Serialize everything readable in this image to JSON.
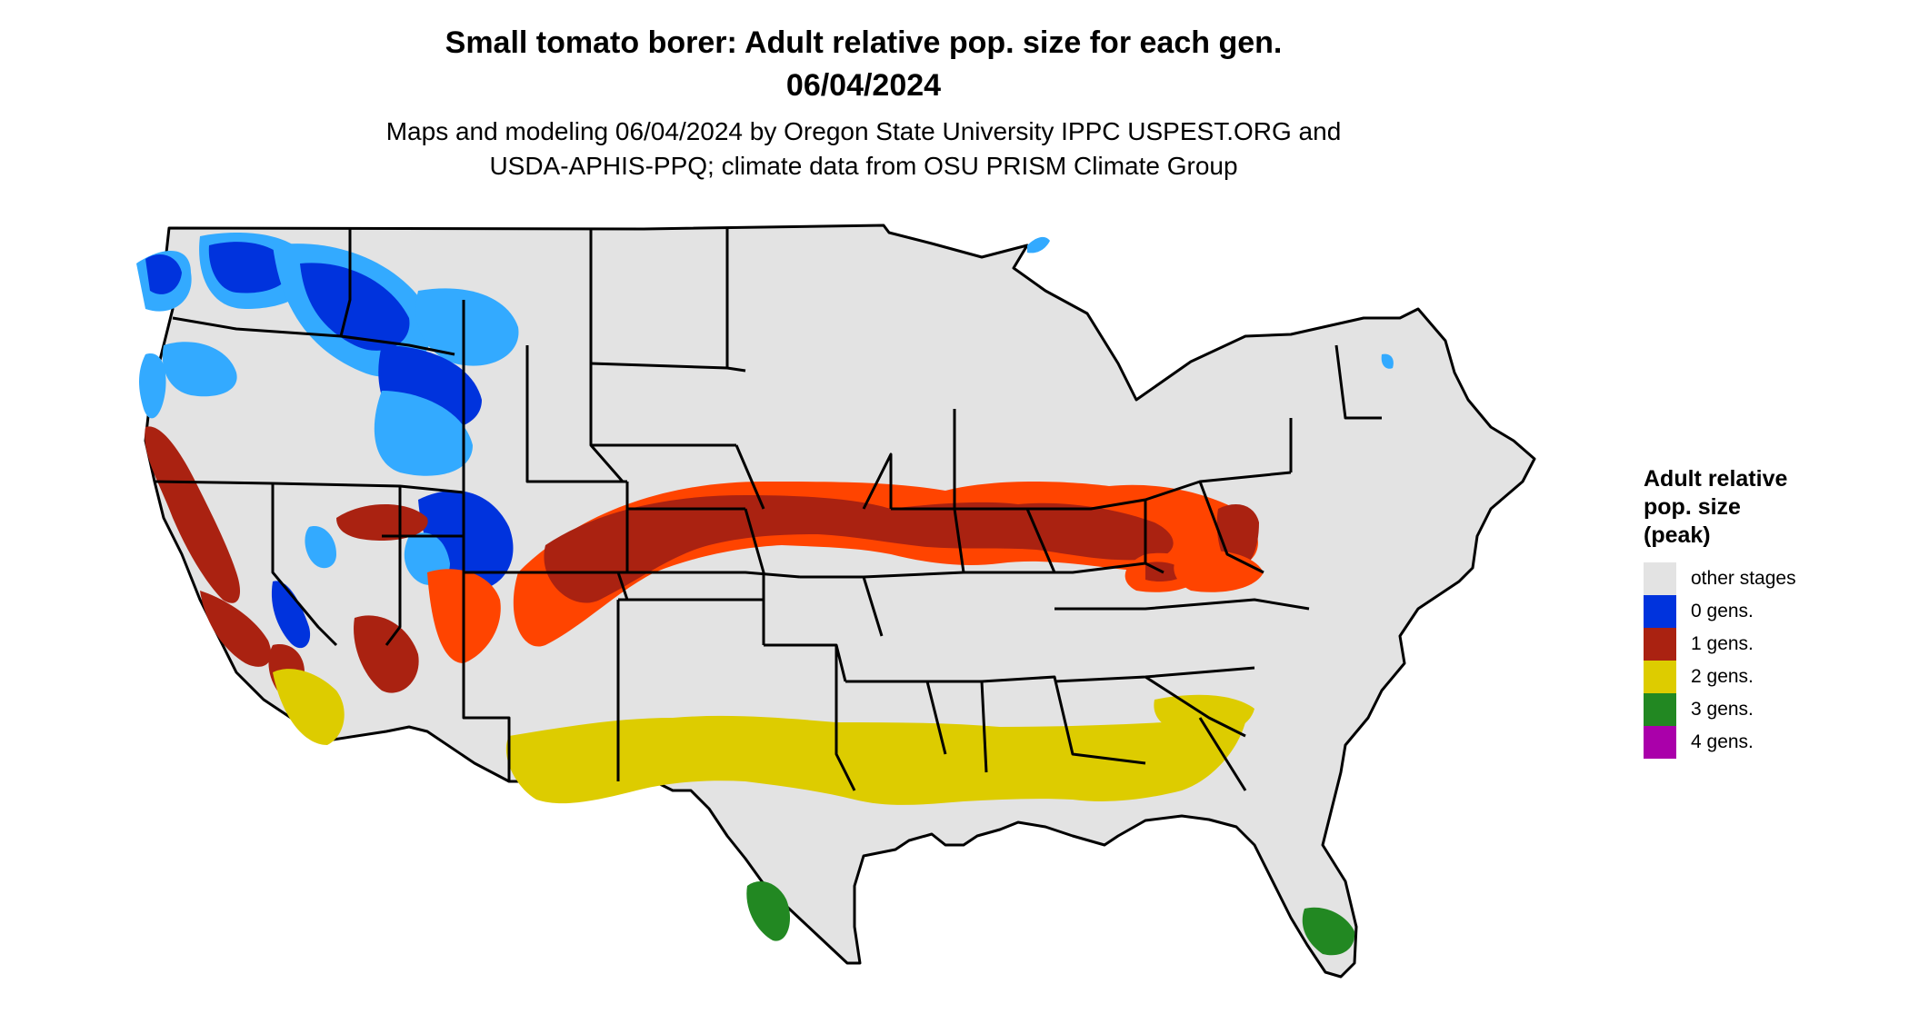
{
  "header": {
    "title_line1": "Small tomato borer: Adult relative pop. size for each gen.",
    "title_line2": "06/04/2024",
    "subtitle_line1": "Maps and modeling 06/04/2024 by Oregon State University IPPC USPEST.ORG and",
    "subtitle_line2": "USDA-APHIS-PPQ; climate data from OSU PRISM Climate Group"
  },
  "legend": {
    "title": "Adult relative\npop. size\n(peak)",
    "items": [
      {
        "label": "other stages",
        "color": "#e3e3e3"
      },
      {
        "label": "0 gens.",
        "color": "#0033dd"
      },
      {
        "label": "1 gens.",
        "color": "#aa2211"
      },
      {
        "label": "2 gens.",
        "color": "#ddcc00"
      },
      {
        "label": "3 gens.",
        "color": "#228822"
      },
      {
        "label": "4 gens.",
        "color": "#aa00aa"
      }
    ]
  },
  "map": {
    "base_color": "#e3e3e3",
    "border_color": "#000000",
    "accent_colors": {
      "light_blue": "#33aaff",
      "orange": "#ff4400",
      "dark_red": "#aa2211",
      "yellow": "#ddcc00",
      "green": "#228822",
      "blue": "#0033dd"
    }
  }
}
